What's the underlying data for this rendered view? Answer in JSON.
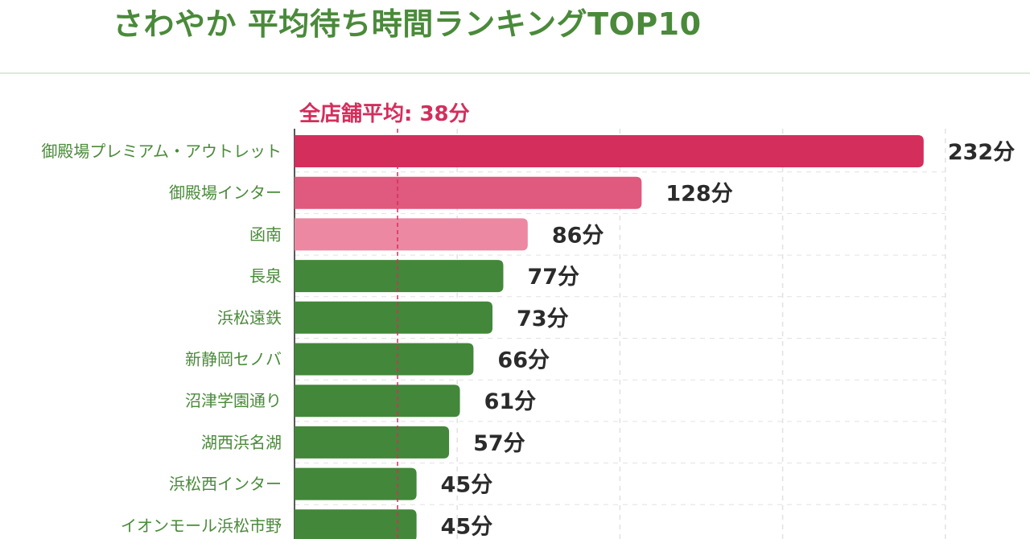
{
  "title": "さわやか 平均待ち時間ランキングTOP10",
  "colors": {
    "title": "#4a8a3a",
    "label": "#4a8a3a",
    "value": "#2b2b2b",
    "average": "#d42e5c",
    "rank1": "#d42e5c",
    "rank2": "#e0597e",
    "rank3": "#ec88a2",
    "others": "#43873a",
    "grid": "#e2e2e2"
  },
  "chart_data": {
    "type": "bar",
    "orientation": "horizontal",
    "title": "さわやか 平均待ち時間ランキングTOP10",
    "unit": "分",
    "categories": [
      "御殿場プレミアム・アウトレット",
      "御殿場インター",
      "函南",
      "長泉",
      "浜松遠鉄",
      "新静岡セノバ",
      "沼津学園通り",
      "湖西浜名湖",
      "浜松西インター",
      "イオンモール浜松市野"
    ],
    "values": [
      232,
      128,
      86,
      77,
      73,
      66,
      61,
      57,
      45,
      45
    ],
    "value_labels": [
      "232分",
      "128分",
      "86分",
      "77分",
      "73分",
      "66分",
      "61分",
      "57分",
      "45分",
      "45分"
    ],
    "reference_line": {
      "label": "全店舗平均: 38分",
      "value": 38
    },
    "xlim": [
      0,
      240
    ],
    "grid": true
  }
}
